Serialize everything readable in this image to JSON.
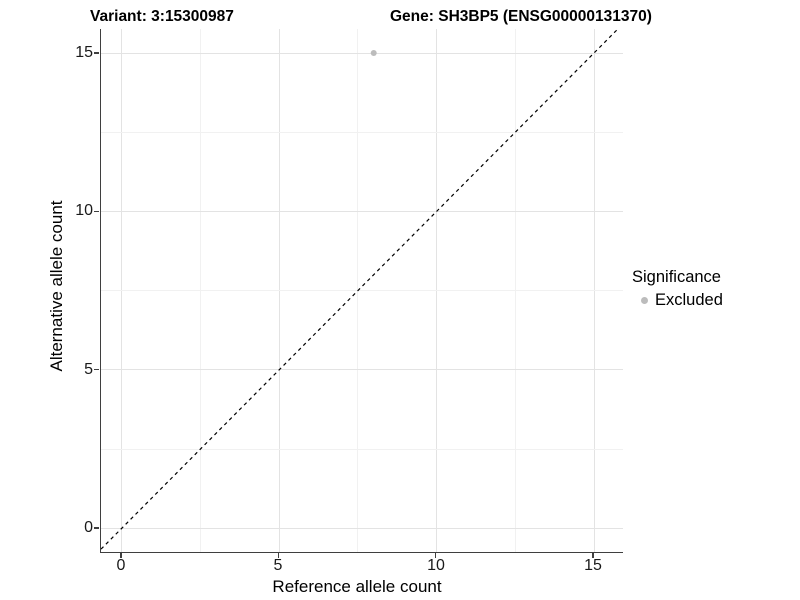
{
  "titles": {
    "variant": "Variant: 3:15300987",
    "gene": "Gene: SH3BP5 (ENSG00000131370)"
  },
  "axes": {
    "x": {
      "label": "Reference allele count",
      "ticks": [
        "0",
        "5",
        "10",
        "15"
      ]
    },
    "y": {
      "label": "Alternative allele count",
      "ticks": [
        "0",
        "5",
        "10",
        "15"
      ]
    }
  },
  "legend": {
    "title": "Significance",
    "items": [
      {
        "label": "Excluded",
        "color": "#bcbcbc"
      }
    ]
  },
  "colors": {
    "axis_line": "#3f3f3f",
    "grid_major": "#e3e3e3",
    "grid_minor": "#f1f1f1",
    "point_excluded": "#bcbcbc",
    "identity_line": "#000000",
    "background": "#ffffff"
  },
  "chart_data": {
    "type": "scatter",
    "title_left": "Variant: 3:15300987",
    "title_right": "Gene: SH3BP5 (ENSG00000131370)",
    "xlabel": "Reference allele count",
    "ylabel": "Alternative allele count",
    "x_ticks": [
      0,
      5,
      10,
      15
    ],
    "y_ticks": [
      0,
      5,
      10,
      15
    ],
    "xlim": [
      -0.75,
      15.9
    ],
    "ylim": [
      -0.75,
      15.75
    ],
    "grid": true,
    "legend_position": "right",
    "series": [
      {
        "name": "Excluded",
        "color": "#bcbcbc",
        "points": [
          [
            8,
            15
          ]
        ]
      }
    ],
    "reference_line": {
      "slope": 1,
      "intercept": 0,
      "style": "dashed",
      "color": "#000000"
    }
  }
}
